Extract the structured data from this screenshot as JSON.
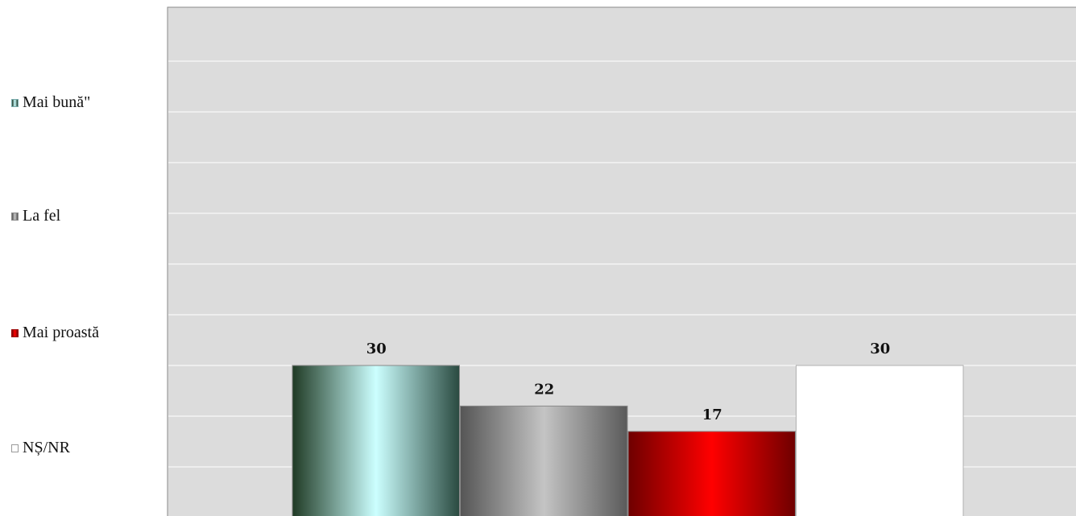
{
  "chart_data": {
    "type": "bar",
    "categories": [
      "Mai bună\"",
      "La fel",
      "Mai proastă",
      "NȘ/NR"
    ],
    "values": [
      30,
      22,
      17,
      30
    ],
    "data_labels": [
      "30",
      "22",
      "17",
      "30"
    ],
    "ylim": [
      0,
      100
    ],
    "grid": true,
    "legend_position": "left",
    "colors": [
      "#ccffff",
      "#bdbdbd",
      "#ff0000",
      "#ffffff"
    ]
  },
  "legend": {
    "items": [
      {
        "label": "Mai bună\"",
        "color": "#ccffff"
      },
      {
        "label": "La fel",
        "color": "#bdbdbd"
      },
      {
        "label": "Mai proastă",
        "color": "#ff0000"
      },
      {
        "label": "NȘ/NR",
        "color": "#ffffff"
      }
    ]
  }
}
